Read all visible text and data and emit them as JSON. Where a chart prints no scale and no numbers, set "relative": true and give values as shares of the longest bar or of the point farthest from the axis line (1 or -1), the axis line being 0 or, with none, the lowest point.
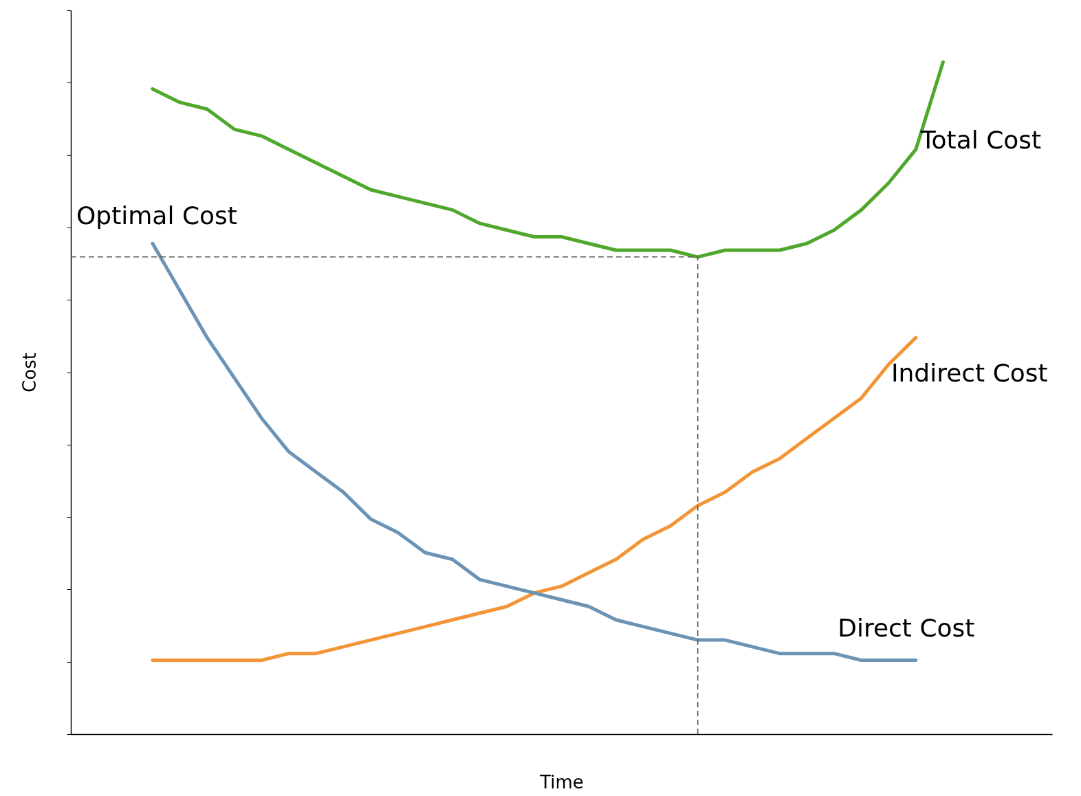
{
  "chart_data": {
    "type": "line",
    "xlabel": "Time",
    "ylabel": "Cost",
    "relative": true,
    "categories": [
      null,
      null,
      null,
      null,
      null,
      null,
      null,
      null,
      null,
      null,
      null,
      null,
      null,
      null,
      null,
      null,
      null,
      null,
      null,
      null,
      null,
      null,
      null,
      null,
      null,
      null,
      null,
      null,
      null,
      null,
      null,
      null,
      null,
      null,
      null,
      null,
      null
    ],
    "series": [
      {
        "name": "Total Cost",
        "color": "#4fa72c",
        "values": [
          null,
          null,
          null,
          0.96,
          0.94,
          0.93,
          0.9,
          0.89,
          0.87,
          0.85,
          0.83,
          0.81,
          0.8,
          0.79,
          0.78,
          0.76,
          0.75,
          0.74,
          0.74,
          0.73,
          0.72,
          0.72,
          0.72,
          0.71,
          0.72,
          0.72,
          0.72,
          0.73,
          0.75,
          0.78,
          0.82,
          0.87,
          1.0,
          null,
          null,
          null,
          null
        ]
      },
      {
        "name": "Indirect Cost",
        "color": "#f39436",
        "values": [
          null,
          null,
          null,
          0.11,
          0.11,
          0.11,
          0.11,
          0.11,
          0.12,
          0.12,
          0.13,
          0.14,
          0.15,
          0.16,
          0.17,
          0.18,
          0.19,
          0.21,
          0.22,
          0.24,
          0.26,
          0.29,
          0.31,
          0.34,
          0.36,
          0.39,
          0.41,
          0.44,
          0.47,
          0.5,
          0.55,
          0.59,
          null,
          null,
          null,
          null,
          null
        ]
      },
      {
        "name": "Direct Cost",
        "color": "#6a93b5",
        "values": [
          null,
          null,
          null,
          0.73,
          0.66,
          0.59,
          0.53,
          0.47,
          0.42,
          0.39,
          0.36,
          0.32,
          0.3,
          0.27,
          0.26,
          0.23,
          0.22,
          0.21,
          0.2,
          0.19,
          0.17,
          0.16,
          0.15,
          0.14,
          0.14,
          0.13,
          0.12,
          0.12,
          0.12,
          0.11,
          0.11,
          0.11,
          null,
          null,
          null,
          null,
          null
        ]
      }
    ],
    "ref_lines": [
      {
        "axis": "y",
        "value": 0.71,
        "label": "Optimal Cost",
        "color": "#555555",
        "line_style": "dashed"
      }
    ]
  }
}
